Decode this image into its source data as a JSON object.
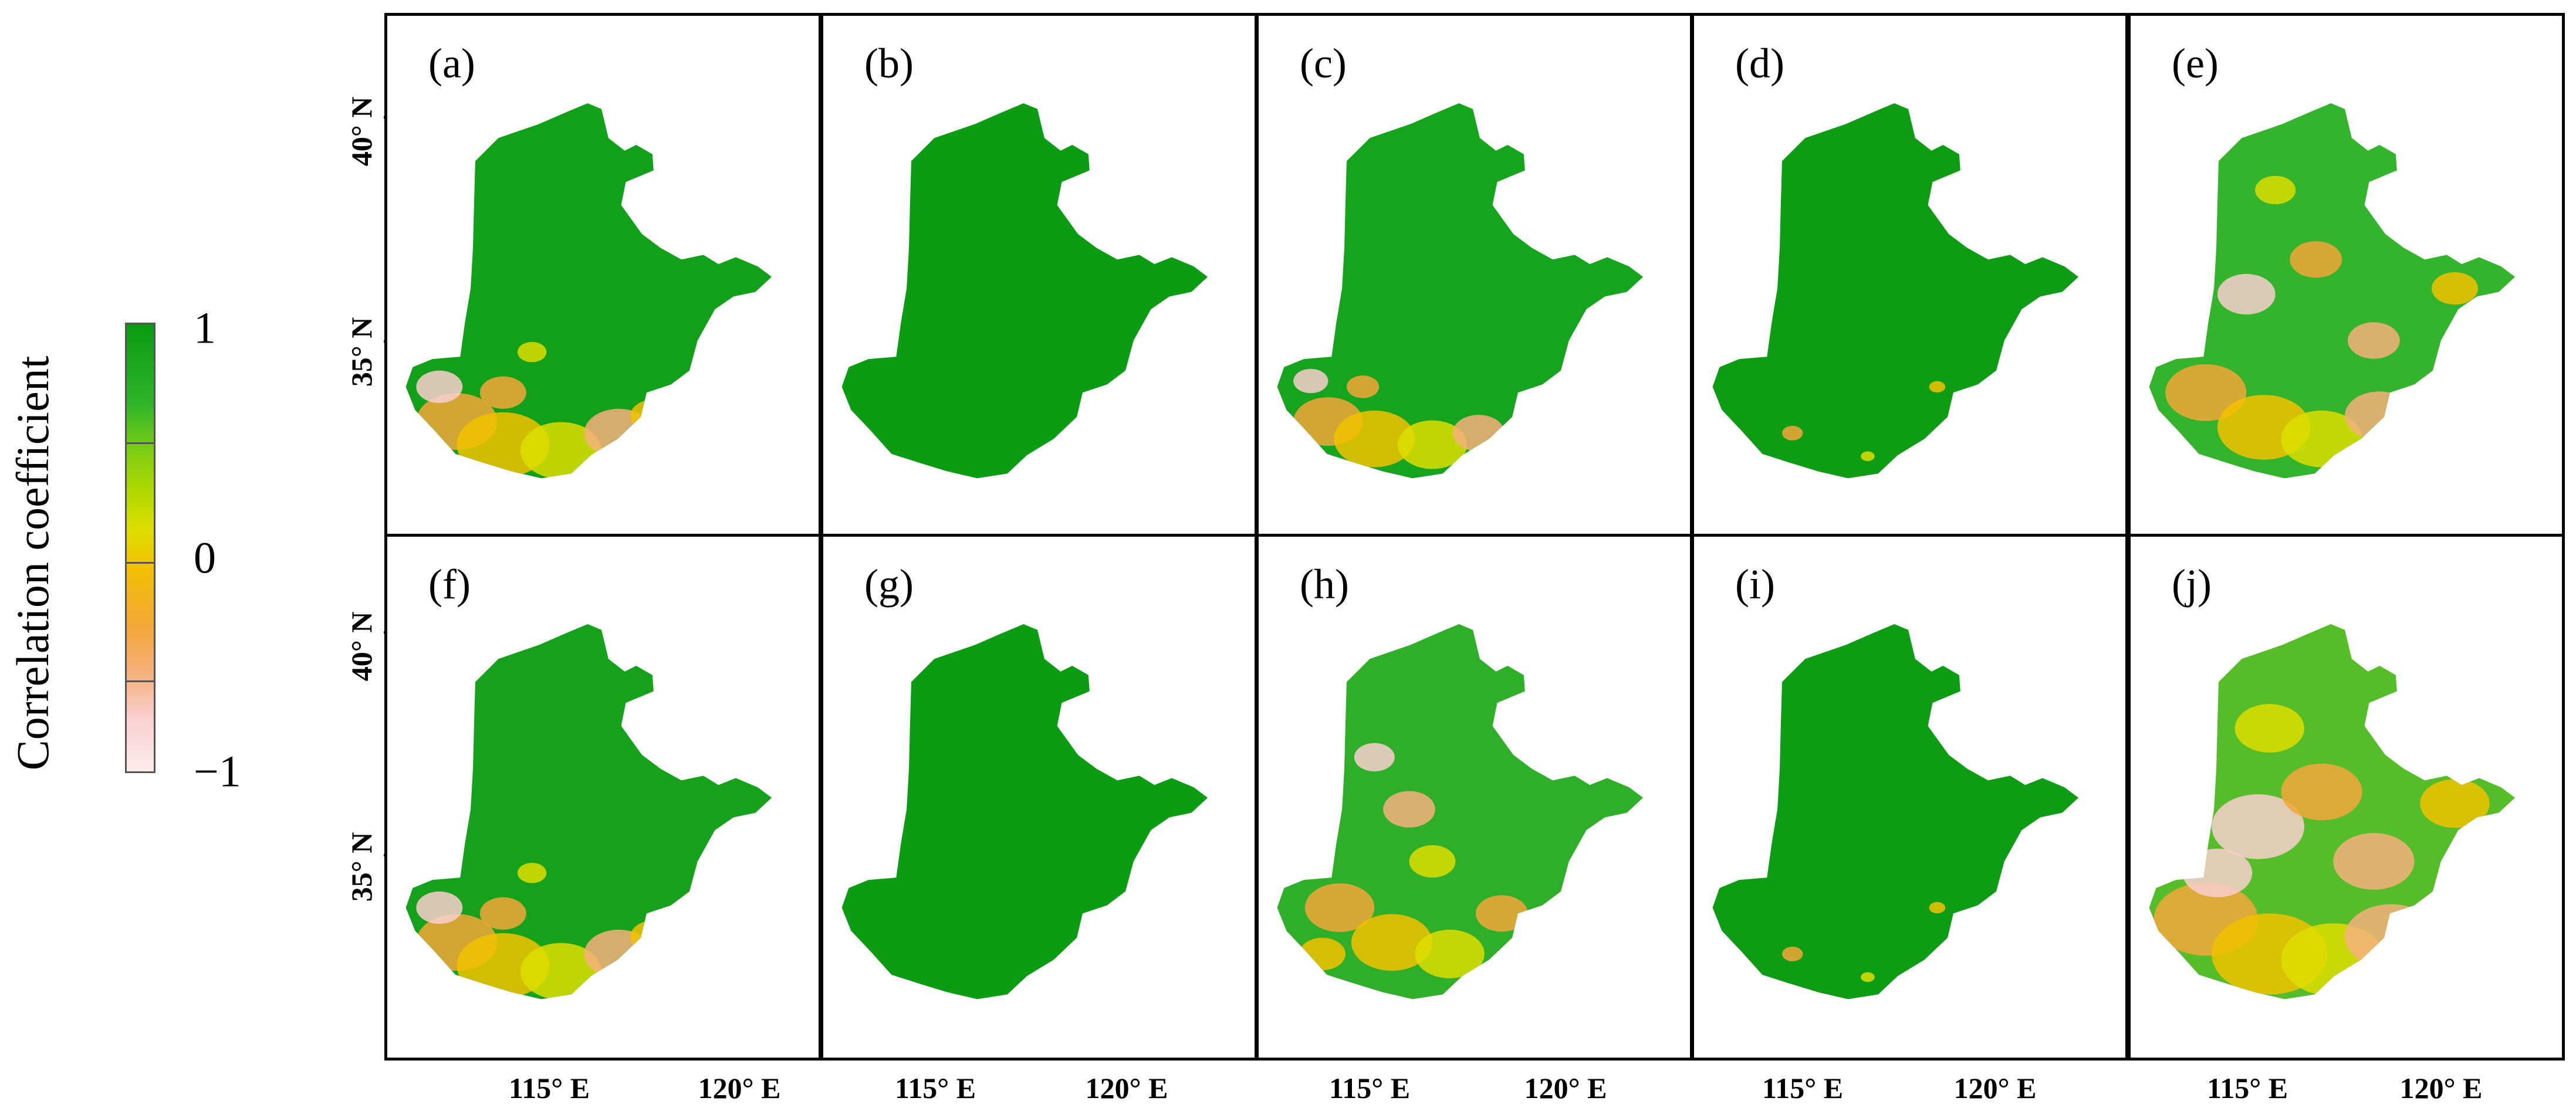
{
  "colorbar": {
    "title": "Correlation coefficient",
    "tick_labels": [
      "1",
      "0",
      "−1"
    ]
  },
  "axes": {
    "lat_labels": [
      "40° N",
      "35° N"
    ],
    "lon_labels": [
      "115° E",
      "120° E"
    ]
  },
  "colors": {
    "strong_positive": "#0a9a12",
    "positive": "#2fb52a",
    "weak_positive": "#7ccd14",
    "near_zero": "#dede00",
    "weak_negative": "#f3a73a",
    "negative": "#f6b07b",
    "strong_negative": "#fcecec"
  },
  "panels": [
    {
      "label": "(a)",
      "fill": "#12a01a",
      "patches": "south-heavy"
    },
    {
      "label": "(b)",
      "fill": "#0b9c13",
      "patches": "none"
    },
    {
      "label": "(c)",
      "fill": "#16a31d",
      "patches": "south"
    },
    {
      "label": "(d)",
      "fill": "#0e9c15",
      "patches": "few"
    },
    {
      "label": "(e)",
      "fill": "#33b42c",
      "patches": "widespread"
    },
    {
      "label": "(f)",
      "fill": "#15a11c",
      "patches": "south-heavy"
    },
    {
      "label": "(g)",
      "fill": "#0b9c13",
      "patches": "none"
    },
    {
      "label": "(h)",
      "fill": "#2fae29",
      "patches": "moderate"
    },
    {
      "label": "(i)",
      "fill": "#0e9c15",
      "patches": "few"
    },
    {
      "label": "(j)",
      "fill": "#56bd2a",
      "patches": "dominant"
    }
  ]
}
